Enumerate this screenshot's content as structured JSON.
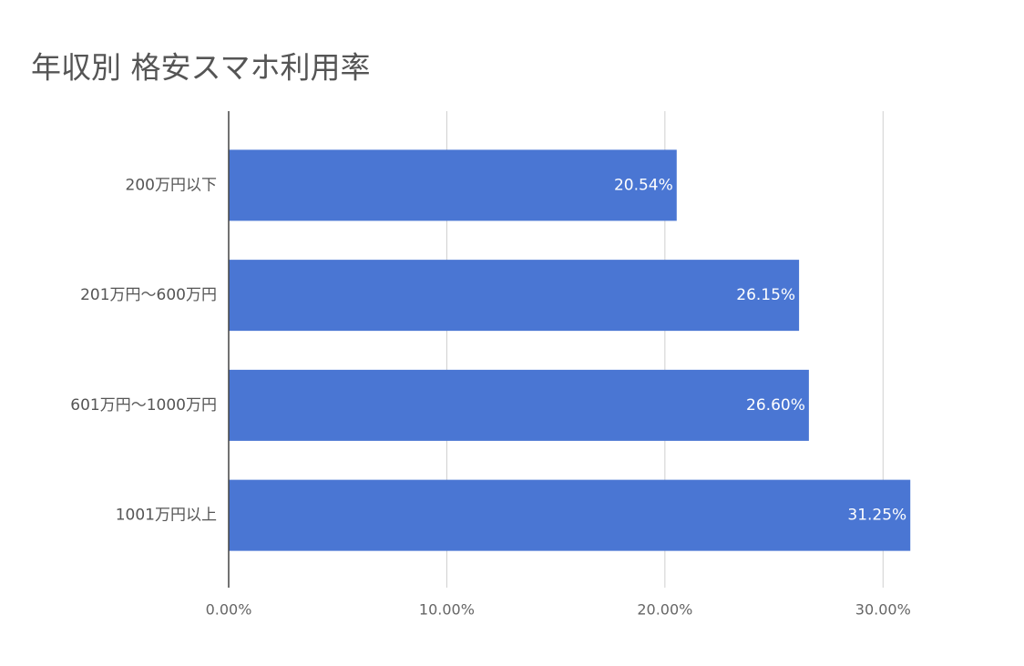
{
  "chart_data": {
    "type": "bar",
    "orientation": "horizontal",
    "title": "年収別 格安スマホ利用率",
    "categories": [
      "200万円以下",
      "201万円〜600万円",
      "601万円〜1000万円",
      "1001万円以上"
    ],
    "values": [
      20.54,
      26.15,
      26.6,
      31.25
    ],
    "value_labels": [
      "20.54%",
      "26.15%",
      "26.60%",
      "31.25%"
    ],
    "color": "#4a76d3",
    "xlim": [
      0,
      35
    ],
    "xticks": [
      {
        "value": 0,
        "label": "0.00%"
      },
      {
        "value": 10,
        "label": "10.00%"
      },
      {
        "value": 20,
        "label": "20.00%"
      },
      {
        "value": 30,
        "label": "30.00%"
      }
    ],
    "grid": true
  }
}
